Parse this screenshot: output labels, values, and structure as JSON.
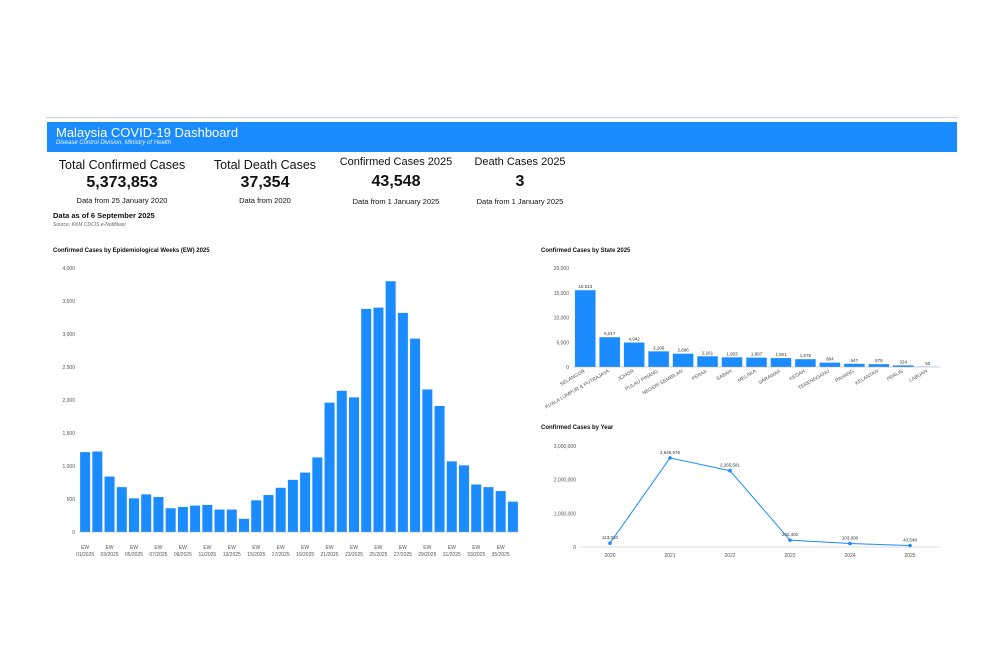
{
  "header": {
    "title": "Malaysia COVID-19 Dashboard",
    "subtitle": "Disease Control Division, Ministry of Health",
    "banner_color": "#1a8cff"
  },
  "kpis": [
    {
      "label": "Total Confirmed Cases",
      "value": "5,373,853",
      "note": "Data from 25 January 2020"
    },
    {
      "label": "Total Death Cases",
      "value": "37,354",
      "note": "Data from 2020"
    },
    {
      "label": "Confirmed Cases 2025",
      "value": "43,548",
      "note": "Data from 1 January 2025"
    },
    {
      "label": "Death Cases 2025",
      "value": "3",
      "note": "Data from 1 January 2025"
    }
  ],
  "as_of": "Data as of 6 September 2025",
  "source": "Source: KKM CDCIS e-Notifikasi",
  "chart_data": [
    {
      "type": "bar",
      "title": "Confirmed Cases by Epidemiological Weeks (EW) 2025",
      "color": "#1a8cff",
      "yticks": [
        "0",
        "500",
        "1,000",
        "1,500",
        "2,000",
        "2,500",
        "3,000",
        "3,500",
        "4,000"
      ],
      "ylim": [
        0,
        4000
      ],
      "xtick_labels": [
        "EW 01/2025",
        "EW 03/2025",
        "EW 05/2025",
        "EW 07/2025",
        "EW 09/2025",
        "EW 11/2025",
        "EW 13/2025",
        "EW 15/2025",
        "EW 17/2025",
        "EW 19/2025",
        "EW 21/2025",
        "EW 23/2025",
        "EW 25/2025",
        "EW 27/2025",
        "EW 29/2025",
        "EW 31/2025",
        "EW 33/2025",
        "EW 35/2025"
      ],
      "values": [
        1210,
        1220,
        840,
        680,
        510,
        570,
        530,
        360,
        380,
        400,
        410,
        340,
        340,
        200,
        480,
        560,
        670,
        790,
        900,
        1130,
        1960,
        2140,
        2040,
        3380,
        3400,
        3800,
        3320,
        2930,
        2160,
        1910,
        1070,
        1010,
        720,
        680,
        620,
        460
      ]
    },
    {
      "type": "bar",
      "title": "Confirmed Cases by State 2025",
      "color": "#1a8cff",
      "yticks": [
        "0",
        "5,000",
        "10,000",
        "15,000",
        "20,000"
      ],
      "ylim": [
        0,
        20000
      ],
      "categories": [
        "SELANGOR",
        "KUALA LUMPUR & PUTRAJAYA",
        "JOHOR",
        "PULAU PINANG",
        "NEGERI SEMBILAN",
        "PERAK",
        "SABAH",
        "MELAKA",
        "SARAWAK",
        "KEDAH",
        "TERENGGANU",
        "PAHANG",
        "KELANTAN",
        "PERLIS",
        "LABUAN"
      ],
      "values": [
        15513,
        6017,
        4942,
        3166,
        2686,
        2161,
        1953,
        1897,
        1801,
        1575,
        884,
        647,
        575,
        324,
        50
      ],
      "value_labels": [
        "15,513",
        "6,017",
        "4,942",
        "3,166",
        "2,686",
        "2,161",
        "1,953",
        "1,897",
        "1,801",
        "1,575",
        "884",
        "647",
        "575",
        "324",
        "50"
      ]
    },
    {
      "type": "line",
      "title": "Confirmed Cases by Year",
      "color": "#1a8cff",
      "yticks": [
        "0",
        "1,000,000",
        "2,000,000",
        "3,000,000"
      ],
      "ylim": [
        0,
        3000000
      ],
      "x": [
        "2020",
        "2021",
        "2022",
        "2023",
        "2024",
        "2025"
      ],
      "values": [
        113010,
        2645576,
        2265581,
        202402,
        103000,
        43548
      ],
      "value_labels": [
        "113,010",
        "2,645,576",
        "2,265,581",
        "202,402",
        "103,000",
        "43,548"
      ]
    }
  ]
}
